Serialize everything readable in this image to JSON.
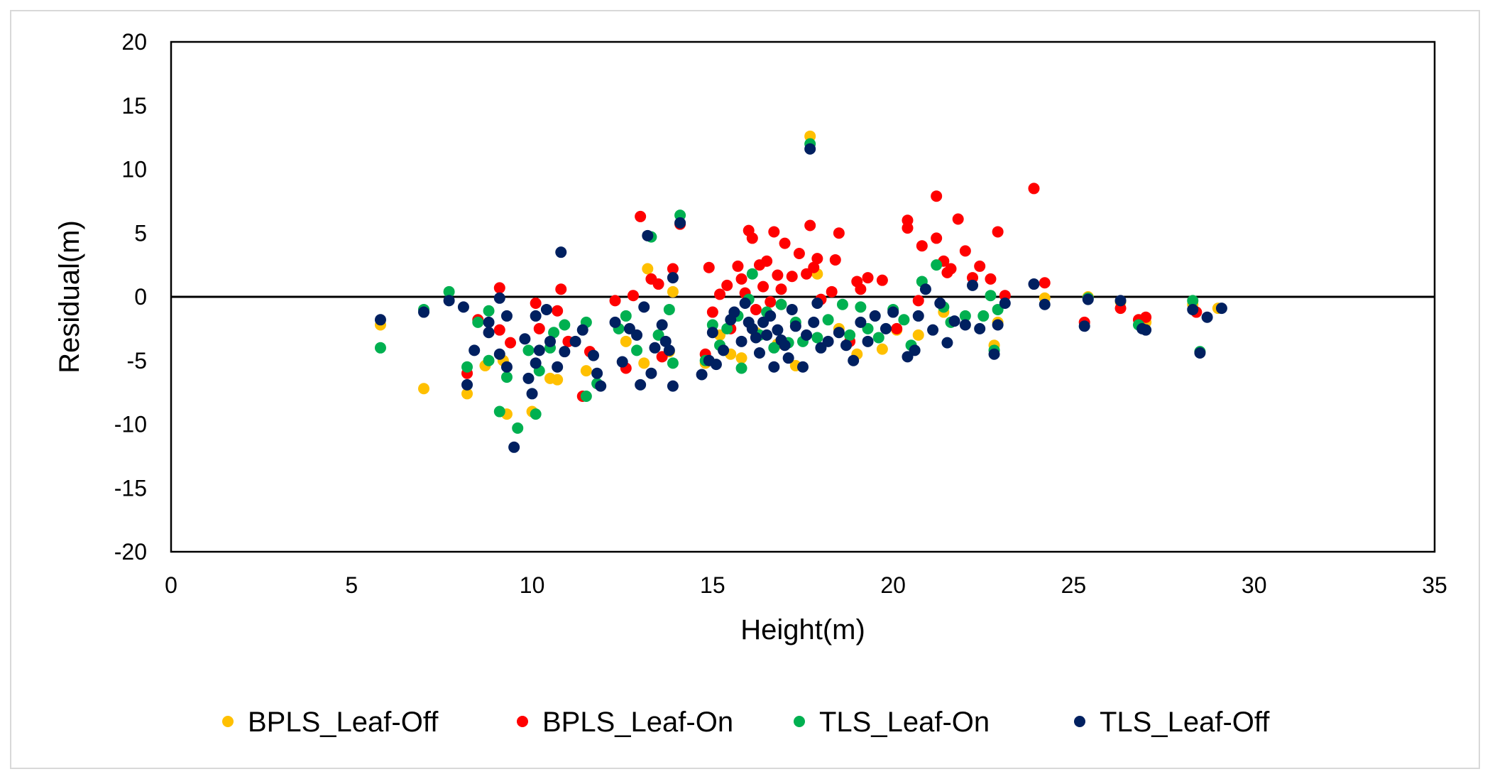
{
  "chart_data": {
    "type": "scatter",
    "title": "",
    "xlabel": "Height(m)",
    "ylabel": "Residual(m)",
    "xlim": [
      0,
      35
    ],
    "ylim": [
      -20,
      20
    ],
    "xticks": [
      0,
      5,
      10,
      15,
      20,
      25,
      30,
      35
    ],
    "yticks": [
      -20,
      -15,
      -10,
      -5,
      0,
      5,
      10,
      15,
      20
    ],
    "xtick_labels": [
      "0",
      "5",
      "10",
      "15",
      "20",
      "25",
      "30",
      "35"
    ],
    "ytick_labels": [
      "-20",
      "-15",
      "-10",
      "-5",
      "0",
      "5",
      "10",
      "15",
      "20"
    ],
    "reference_line_y": 0,
    "legend_position": "bottom",
    "series": [
      {
        "name": "BPLS_Leaf-Off",
        "color": "#FFC000",
        "points": [
          [
            5.8,
            -2.2
          ],
          [
            7.0,
            -7.2
          ],
          [
            8.2,
            -7.6
          ],
          [
            8.7,
            -5.4
          ],
          [
            9.2,
            -5.0
          ],
          [
            9.3,
            -9.2
          ],
          [
            10.0,
            -9.0
          ],
          [
            10.5,
            -6.4
          ],
          [
            10.7,
            -6.5
          ],
          [
            11.5,
            -5.8
          ],
          [
            12.6,
            -3.5
          ],
          [
            13.2,
            2.2
          ],
          [
            13.1,
            -5.2
          ],
          [
            13.9,
            0.4
          ],
          [
            13.8,
            -4.3
          ],
          [
            14.8,
            -5.2
          ],
          [
            15.2,
            -3.0
          ],
          [
            15.5,
            -4.5
          ],
          [
            15.8,
            -4.8
          ],
          [
            16.2,
            -2.8
          ],
          [
            16.8,
            -3.7
          ],
          [
            17.3,
            -5.4
          ],
          [
            17.7,
            12.6
          ],
          [
            17.9,
            1.8
          ],
          [
            18.5,
            -2.5
          ],
          [
            19.0,
            -4.5
          ],
          [
            19.7,
            -4.1
          ],
          [
            20.1,
            -2.6
          ],
          [
            20.7,
            -3.0
          ],
          [
            21.4,
            -1.2
          ],
          [
            22.8,
            -3.8
          ],
          [
            22.9,
            -2.0
          ],
          [
            24.2,
            -0.1
          ],
          [
            25.4,
            0.0
          ],
          [
            26.3,
            -0.4
          ],
          [
            27.0,
            -2.0
          ],
          [
            28.3,
            -0.6
          ],
          [
            29.0,
            -0.9
          ]
        ]
      },
      {
        "name": "BPLS_Leaf-On",
        "color": "#FF0000",
        "points": [
          [
            8.2,
            -6.0
          ],
          [
            8.5,
            -1.8
          ],
          [
            9.1,
            0.7
          ],
          [
            9.1,
            -2.6
          ],
          [
            9.4,
            -3.6
          ],
          [
            10.1,
            -0.5
          ],
          [
            10.2,
            -2.5
          ],
          [
            10.7,
            -1.1
          ],
          [
            10.8,
            0.6
          ],
          [
            11.0,
            -3.5
          ],
          [
            11.4,
            -7.8
          ],
          [
            11.6,
            -4.3
          ],
          [
            12.3,
            -0.3
          ],
          [
            12.6,
            -5.6
          ],
          [
            12.8,
            0.1
          ],
          [
            13.0,
            6.3
          ],
          [
            13.3,
            1.4
          ],
          [
            13.5,
            1.0
          ],
          [
            13.6,
            -4.7
          ],
          [
            13.9,
            2.2
          ],
          [
            14.1,
            5.7
          ],
          [
            14.8,
            -4.5
          ],
          [
            14.9,
            2.3
          ],
          [
            15.0,
            -1.2
          ],
          [
            15.2,
            0.2
          ],
          [
            15.4,
            0.9
          ],
          [
            15.5,
            -2.5
          ],
          [
            15.7,
            2.4
          ],
          [
            15.8,
            1.4
          ],
          [
            15.9,
            0.3
          ],
          [
            16.0,
            5.2
          ],
          [
            16.1,
            4.6
          ],
          [
            16.2,
            -1.0
          ],
          [
            16.3,
            2.5
          ],
          [
            16.4,
            0.8
          ],
          [
            16.5,
            2.8
          ],
          [
            16.6,
            -0.4
          ],
          [
            16.7,
            5.1
          ],
          [
            16.8,
            1.7
          ],
          [
            16.9,
            0.6
          ],
          [
            17.0,
            4.2
          ],
          [
            17.2,
            1.6
          ],
          [
            17.4,
            3.4
          ],
          [
            17.6,
            1.8
          ],
          [
            17.7,
            5.6
          ],
          [
            17.8,
            2.3
          ],
          [
            17.9,
            3.0
          ],
          [
            18.0,
            -0.2
          ],
          [
            18.3,
            0.4
          ],
          [
            18.4,
            2.9
          ],
          [
            18.5,
            5.0
          ],
          [
            18.8,
            -3.5
          ],
          [
            19.0,
            1.2
          ],
          [
            19.1,
            0.6
          ],
          [
            19.3,
            1.5
          ],
          [
            19.7,
            1.3
          ],
          [
            20.1,
            -2.5
          ],
          [
            20.4,
            6.0
          ],
          [
            20.4,
            5.4
          ],
          [
            20.7,
            -0.3
          ],
          [
            20.8,
            4.0
          ],
          [
            21.2,
            7.9
          ],
          [
            21.2,
            4.6
          ],
          [
            21.4,
            2.8
          ],
          [
            21.5,
            1.9
          ],
          [
            21.6,
            2.2
          ],
          [
            21.8,
            6.1
          ],
          [
            22.0,
            3.6
          ],
          [
            22.2,
            1.5
          ],
          [
            22.4,
            2.4
          ],
          [
            22.7,
            1.4
          ],
          [
            22.9,
            5.1
          ],
          [
            23.1,
            0.1
          ],
          [
            23.9,
            8.5
          ],
          [
            24.2,
            1.1
          ],
          [
            25.3,
            -2.0
          ],
          [
            26.3,
            -0.9
          ],
          [
            26.8,
            -1.8
          ],
          [
            27.0,
            -1.6
          ],
          [
            28.4,
            -1.2
          ]
        ]
      },
      {
        "name": "TLS_Leaf-On",
        "color": "#00B050",
        "points": [
          [
            5.8,
            -4.0
          ],
          [
            7.0,
            -1.0
          ],
          [
            7.7,
            0.4
          ],
          [
            8.2,
            -5.5
          ],
          [
            8.5,
            -2.0
          ],
          [
            8.8,
            -1.1
          ],
          [
            8.8,
            -5.0
          ],
          [
            9.1,
            -9.0
          ],
          [
            9.3,
            -6.3
          ],
          [
            9.6,
            -10.3
          ],
          [
            9.9,
            -4.2
          ],
          [
            10.1,
            -9.2
          ],
          [
            10.2,
            -5.8
          ],
          [
            10.5,
            -4.0
          ],
          [
            10.6,
            -2.8
          ],
          [
            10.9,
            -2.2
          ],
          [
            11.5,
            -7.8
          ],
          [
            11.5,
            -2.0
          ],
          [
            11.8,
            -6.8
          ],
          [
            12.4,
            -2.5
          ],
          [
            12.6,
            -1.5
          ],
          [
            12.9,
            -4.2
          ],
          [
            13.3,
            4.7
          ],
          [
            13.5,
            -3.0
          ],
          [
            13.8,
            -1.0
          ],
          [
            13.9,
            -5.2
          ],
          [
            14.1,
            6.4
          ],
          [
            14.8,
            -5.0
          ],
          [
            15.0,
            -2.2
          ],
          [
            15.2,
            -3.8
          ],
          [
            15.4,
            -2.5
          ],
          [
            15.7,
            -1.5
          ],
          [
            15.8,
            -5.6
          ],
          [
            16.0,
            -0.2
          ],
          [
            16.1,
            1.8
          ],
          [
            16.3,
            -3.0
          ],
          [
            16.5,
            -1.2
          ],
          [
            16.7,
            -4.0
          ],
          [
            16.9,
            -0.6
          ],
          [
            17.1,
            -3.6
          ],
          [
            17.3,
            -2.0
          ],
          [
            17.5,
            -3.5
          ],
          [
            17.7,
            12.0
          ],
          [
            17.9,
            -3.2
          ],
          [
            18.2,
            -1.8
          ],
          [
            18.6,
            -0.6
          ],
          [
            18.8,
            -3.0
          ],
          [
            19.1,
            -0.8
          ],
          [
            19.3,
            -2.5
          ],
          [
            19.6,
            -3.2
          ],
          [
            20.0,
            -1.0
          ],
          [
            20.3,
            -1.8
          ],
          [
            20.5,
            -3.8
          ],
          [
            20.8,
            1.2
          ],
          [
            21.2,
            2.5
          ],
          [
            21.4,
            -0.8
          ],
          [
            21.6,
            -2.0
          ],
          [
            22.0,
            -1.5
          ],
          [
            22.5,
            -1.5
          ],
          [
            22.7,
            0.1
          ],
          [
            22.8,
            -4.2
          ],
          [
            22.9,
            -1.0
          ],
          [
            25.4,
            -0.1
          ],
          [
            26.8,
            -2.2
          ],
          [
            28.3,
            -0.3
          ],
          [
            28.5,
            -4.3
          ]
        ]
      },
      {
        "name": "TLS_Leaf-Off",
        "color": "#002060",
        "points": [
          [
            5.8,
            -1.8
          ],
          [
            7.0,
            -1.2
          ],
          [
            7.7,
            -0.3
          ],
          [
            8.1,
            -0.8
          ],
          [
            8.2,
            -6.9
          ],
          [
            8.4,
            -4.2
          ],
          [
            8.8,
            -2.0
          ],
          [
            8.8,
            -2.8
          ],
          [
            9.1,
            -0.1
          ],
          [
            9.1,
            -4.5
          ],
          [
            9.3,
            -1.5
          ],
          [
            9.3,
            -5.5
          ],
          [
            9.5,
            -11.8
          ],
          [
            9.8,
            -3.3
          ],
          [
            9.9,
            -6.4
          ],
          [
            10.0,
            -7.6
          ],
          [
            10.1,
            -1.5
          ],
          [
            10.1,
            -5.2
          ],
          [
            10.2,
            -4.2
          ],
          [
            10.4,
            -1.0
          ],
          [
            10.5,
            -3.5
          ],
          [
            10.7,
            -5.5
          ],
          [
            10.8,
            3.5
          ],
          [
            10.9,
            -4.3
          ],
          [
            11.2,
            -3.5
          ],
          [
            11.4,
            -2.6
          ],
          [
            11.7,
            -4.6
          ],
          [
            11.8,
            -6.0
          ],
          [
            11.9,
            -7.0
          ],
          [
            12.3,
            -2.0
          ],
          [
            12.5,
            -5.1
          ],
          [
            12.7,
            -2.5
          ],
          [
            12.9,
            -3.0
          ],
          [
            13.0,
            -6.9
          ],
          [
            13.1,
            -0.8
          ],
          [
            13.2,
            4.8
          ],
          [
            13.3,
            -6.0
          ],
          [
            13.4,
            -4.0
          ],
          [
            13.6,
            -2.2
          ],
          [
            13.7,
            -3.5
          ],
          [
            13.8,
            -4.2
          ],
          [
            13.9,
            1.5
          ],
          [
            13.9,
            -7.0
          ],
          [
            14.1,
            5.8
          ],
          [
            14.7,
            -6.1
          ],
          [
            14.9,
            -5.0
          ],
          [
            15.0,
            -2.8
          ],
          [
            15.1,
            -5.3
          ],
          [
            15.3,
            -4.2
          ],
          [
            15.5,
            -1.8
          ],
          [
            15.6,
            -1.2
          ],
          [
            15.8,
            -3.5
          ],
          [
            15.9,
            -0.5
          ],
          [
            16.0,
            -2.0
          ],
          [
            16.1,
            -2.5
          ],
          [
            16.2,
            -3.2
          ],
          [
            16.3,
            -4.4
          ],
          [
            16.4,
            -2.0
          ],
          [
            16.5,
            -3.0
          ],
          [
            16.6,
            -1.5
          ],
          [
            16.7,
            -5.5
          ],
          [
            16.8,
            -2.6
          ],
          [
            16.9,
            -3.4
          ],
          [
            17.0,
            -3.8
          ],
          [
            17.1,
            -4.8
          ],
          [
            17.2,
            -1.0
          ],
          [
            17.3,
            -2.3
          ],
          [
            17.5,
            -5.5
          ],
          [
            17.6,
            -3.0
          ],
          [
            17.7,
            11.6
          ],
          [
            17.8,
            -2.0
          ],
          [
            17.9,
            -0.5
          ],
          [
            18.0,
            -4.0
          ],
          [
            18.2,
            -3.5
          ],
          [
            18.5,
            -2.8
          ],
          [
            18.7,
            -3.8
          ],
          [
            18.9,
            -5.0
          ],
          [
            19.1,
            -2.0
          ],
          [
            19.3,
            -3.5
          ],
          [
            19.5,
            -1.5
          ],
          [
            19.8,
            -2.5
          ],
          [
            20.0,
            -1.2
          ],
          [
            20.4,
            -4.7
          ],
          [
            20.6,
            -4.2
          ],
          [
            20.7,
            -1.5
          ],
          [
            20.9,
            0.6
          ],
          [
            21.1,
            -2.6
          ],
          [
            21.3,
            -0.5
          ],
          [
            21.5,
            -3.6
          ],
          [
            21.7,
            -1.9
          ],
          [
            22.0,
            -2.2
          ],
          [
            22.2,
            0.9
          ],
          [
            22.4,
            -2.5
          ],
          [
            22.8,
            -4.5
          ],
          [
            22.9,
            -2.2
          ],
          [
            23.1,
            -0.5
          ],
          [
            23.9,
            1.0
          ],
          [
            24.2,
            -0.6
          ],
          [
            25.3,
            -2.3
          ],
          [
            25.4,
            -0.2
          ],
          [
            26.3,
            -0.3
          ],
          [
            26.9,
            -2.5
          ],
          [
            27.0,
            -2.6
          ],
          [
            28.3,
            -1.0
          ],
          [
            28.5,
            -4.4
          ],
          [
            28.7,
            -1.6
          ],
          [
            29.1,
            -0.9
          ]
        ]
      }
    ]
  }
}
